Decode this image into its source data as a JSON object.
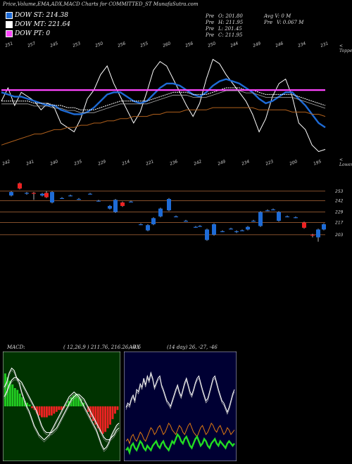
{
  "header": {
    "title": "Price,Volume,EMA,ADX,MACD Charts for COMMITTED_ST MunafaSutra.com"
  },
  "legend": [
    {
      "label": "DOW ST: 214.38",
      "color": "#1e6bd6"
    },
    {
      "label": "DOW MT: 221.64",
      "color": "#ffffff"
    },
    {
      "label": "DOW PT: 0",
      "color": "#ff44ff"
    }
  ],
  "ohlc": {
    "rows": [
      {
        "left_key": "Pre",
        "left_val": "O: 201.80",
        "right_key": "Avg V:",
        "right_val": "0  M"
      },
      {
        "left_key": "Pre",
        "left_val": "H: 211.95",
        "right_key": "Pre",
        "right_val": "V: 0.067 M"
      },
      {
        "left_key": "Pre",
        "left_val": "L: 201.45",
        "right_key": "",
        "right_val": ""
      },
      {
        "left_key": "Pre",
        "left_val": "C: 211.95",
        "right_key": "",
        "right_val": ""
      }
    ]
  },
  "side_labels": {
    "upper": "< Toppe",
    "lower": "< Lower"
  },
  "top_price_labels": [
    "251",
    "257",
    "245",
    "253",
    "250",
    "256",
    "255",
    "260",
    "256",
    "250",
    "244",
    "249",
    "246",
    "234",
    "231"
  ],
  "bottom_price_labels": [
    "242",
    "241",
    "240",
    "235",
    "229",
    "214",
    "221",
    "236",
    "242",
    "249",
    "234",
    "223",
    "200",
    "195"
  ],
  "chart_data": [
    {
      "type": "line",
      "name": "price-ema-panel",
      "x": [
        0,
        1,
        2,
        3,
        4,
        5,
        6,
        7,
        8,
        9,
        10,
        11,
        12,
        13,
        14,
        15,
        16,
        17,
        18,
        19,
        20,
        21,
        22,
        23,
        24,
        25,
        26,
        27,
        28,
        29,
        30,
        31,
        32,
        33,
        34,
        35,
        36,
        37,
        38,
        39,
        40,
        41,
        42,
        43,
        44,
        45,
        46,
        47,
        48,
        49
      ],
      "series": [
        {
          "values": [
            236,
            242,
            234,
            240,
            238,
            236,
            232,
            235,
            233,
            226,
            224,
            222,
            228,
            237,
            241,
            248,
            252,
            244,
            238,
            232,
            226,
            231,
            240,
            250,
            254,
            252,
            246,
            240,
            234,
            229,
            235,
            246,
            255,
            253,
            248,
            244,
            240,
            236,
            230,
            222,
            228,
            238,
            244,
            246,
            238,
            226,
            223,
            216,
            213,
            214
          ],
          "color": "#ffffff"
        },
        {
          "values": [
            240,
            239,
            238,
            238,
            237,
            236,
            235,
            234,
            234,
            232,
            231,
            230,
            230,
            231,
            233,
            236,
            239,
            240,
            240,
            238,
            236,
            235,
            236,
            239,
            242,
            244,
            244,
            243,
            241,
            239,
            238,
            240,
            243,
            245,
            246,
            245,
            244,
            242,
            240,
            237,
            235,
            236,
            238,
            240,
            240,
            237,
            234,
            230,
            226,
            224
          ],
          "color": "#1e6bd6"
        },
        {
          "values": [
            236,
            236,
            236,
            236,
            236,
            235,
            235,
            235,
            234,
            234,
            233,
            233,
            232,
            232,
            232,
            233,
            234,
            235,
            236,
            236,
            236,
            236,
            236,
            237,
            238,
            239,
            240,
            240,
            240,
            239,
            239,
            239,
            240,
            241,
            242,
            242,
            242,
            241,
            241,
            240,
            239,
            239,
            239,
            239,
            239,
            238,
            237,
            236,
            235,
            234
          ],
          "color": "#ffffff"
        },
        {
          "values": [
            216,
            217,
            218,
            219,
            220,
            221,
            221,
            222,
            223,
            223,
            224,
            224,
            225,
            225,
            226,
            226,
            227,
            227,
            228,
            228,
            229,
            229,
            229,
            230,
            230,
            231,
            231,
            231,
            232,
            232,
            232,
            232,
            233,
            233,
            233,
            233,
            233,
            233,
            233,
            232,
            232,
            232,
            232,
            232,
            231,
            231,
            231,
            230,
            230,
            229
          ],
          "color": "#b0601c"
        },
        {
          "values": [
            241,
            241,
            241,
            241,
            241,
            241,
            241,
            241,
            241,
            241,
            241,
            241,
            241,
            241,
            241,
            241,
            241,
            241,
            241,
            241,
            241,
            241,
            241,
            241,
            241,
            241,
            241,
            241,
            241,
            241,
            241,
            241,
            241,
            241,
            241,
            241,
            241,
            241,
            241,
            241,
            241,
            241,
            241,
            241,
            241,
            241,
            241,
            241,
            241,
            241
          ],
          "color": "#ff44ff"
        }
      ]
    },
    {
      "type": "bar",
      "name": "candles",
      "reference_levels": [
        "253",
        "242",
        "229",
        "217",
        "203"
      ],
      "candles": [
        {
          "x": 16,
          "o": 248,
          "c": 252,
          "h": 253,
          "l": 247,
          "up": true
        },
        {
          "x": 28,
          "o": 262,
          "c": 256,
          "h": 263,
          "l": 255,
          "up": false
        },
        {
          "x": 38,
          "o": 250,
          "c": 251,
          "h": 252,
          "l": 249,
          "up": true
        },
        {
          "x": 48,
          "o": 251,
          "c": 250,
          "h": 252,
          "l": 243,
          "up": false
        },
        {
          "x": 60,
          "o": 248,
          "c": 250,
          "h": 251,
          "l": 247,
          "up": true
        },
        {
          "x": 66,
          "o": 251,
          "c": 246,
          "h": 253,
          "l": 245,
          "up": false
        },
        {
          "x": 74,
          "o": 252,
          "c": 240,
          "h": 253,
          "l": 239,
          "up": true
        },
        {
          "x": 88,
          "o": 245,
          "c": 245,
          "h": 246,
          "l": 244,
          "up": true
        },
        {
          "x": 100,
          "o": 248,
          "c": 248,
          "h": 249,
          "l": 247,
          "up": true
        },
        {
          "x": 112,
          "o": 244,
          "c": 244,
          "h": 245,
          "l": 243,
          "up": true
        },
        {
          "x": 128,
          "o": 250,
          "c": 250,
          "h": 251,
          "l": 249,
          "up": true
        },
        {
          "x": 140,
          "o": 242,
          "c": 242,
          "h": 243,
          "l": 241,
          "up": true
        },
        {
          "x": 156,
          "o": 233,
          "c": 236,
          "h": 237,
          "l": 232,
          "up": true
        },
        {
          "x": 164,
          "o": 229,
          "c": 243,
          "h": 244,
          "l": 228,
          "up": true
        },
        {
          "x": 174,
          "o": 240,
          "c": 236,
          "h": 241,
          "l": 235,
          "up": false
        },
        {
          "x": 186,
          "o": 241,
          "c": 241,
          "h": 242,
          "l": 240,
          "up": true
        },
        {
          "x": 200,
          "o": 215,
          "c": 215,
          "h": 216,
          "l": 214,
          "up": true
        },
        {
          "x": 210,
          "o": 208,
          "c": 214,
          "h": 215,
          "l": 207,
          "up": true
        },
        {
          "x": 218,
          "o": 215,
          "c": 222,
          "h": 223,
          "l": 214,
          "up": true
        },
        {
          "x": 228,
          "o": 224,
          "c": 233,
          "h": 234,
          "l": 223,
          "up": true
        },
        {
          "x": 240,
          "o": 231,
          "c": 244,
          "h": 245,
          "l": 230,
          "up": true
        },
        {
          "x": 250,
          "o": 224,
          "c": 224,
          "h": 225,
          "l": 223,
          "up": true
        },
        {
          "x": 264,
          "o": 219,
          "c": 219,
          "h": 220,
          "l": 218,
          "up": true
        },
        {
          "x": 278,
          "o": 212,
          "c": 212,
          "h": 213,
          "l": 211,
          "up": true
        },
        {
          "x": 284,
          "o": 213,
          "c": 213,
          "h": 214,
          "l": 212,
          "up": true
        },
        {
          "x": 294,
          "o": 197,
          "c": 209,
          "h": 210,
          "l": 196,
          "up": true
        },
        {
          "x": 304,
          "o": 203,
          "c": 215,
          "h": 216,
          "l": 202,
          "up": true
        },
        {
          "x": 316,
          "o": 207,
          "c": 207,
          "h": 208,
          "l": 206,
          "up": true
        },
        {
          "x": 328,
          "o": 210,
          "c": 210,
          "h": 211,
          "l": 209,
          "up": true
        },
        {
          "x": 336,
          "o": 206,
          "c": 207,
          "h": 208,
          "l": 205,
          "up": true
        },
        {
          "x": 344,
          "o": 208,
          "c": 208,
          "h": 209,
          "l": 207,
          "up": true
        },
        {
          "x": 352,
          "o": 209,
          "c": 212,
          "h": 213,
          "l": 208,
          "up": true
        },
        {
          "x": 360,
          "o": 219,
          "c": 219,
          "h": 220,
          "l": 218,
          "up": true
        },
        {
          "x": 370,
          "o": 213,
          "c": 229,
          "h": 230,
          "l": 212,
          "up": true
        },
        {
          "x": 380,
          "o": 231,
          "c": 231,
          "h": 232,
          "l": 230,
          "up": true
        },
        {
          "x": 388,
          "o": 232,
          "c": 232,
          "h": 233,
          "l": 231,
          "up": true
        },
        {
          "x": 396,
          "o": 229,
          "c": 219,
          "h": 230,
          "l": 218,
          "up": true
        },
        {
          "x": 408,
          "o": 224,
          "c": 224,
          "h": 225,
          "l": 223,
          "up": true
        },
        {
          "x": 420,
          "o": 223,
          "c": 223,
          "h": 224,
          "l": 222,
          "up": true
        },
        {
          "x": 432,
          "o": 217,
          "c": 211,
          "h": 218,
          "l": 210,
          "up": false
        },
        {
          "x": 444,
          "o": 203,
          "c": 202,
          "h": 204,
          "l": 200,
          "up": false
        },
        {
          "x": 452,
          "o": 200,
          "c": 209,
          "h": 210,
          "l": 195,
          "up": true
        },
        {
          "x": 460,
          "o": 209,
          "c": 215,
          "h": 216,
          "l": 208,
          "up": true
        }
      ]
    },
    {
      "type": "bar",
      "name": "macd",
      "label": "MACD:",
      "params": "( 12,26,9 ) 211.76, 216.26, -4.5",
      "histogram": [
        18,
        16,
        14,
        12,
        10,
        9,
        7,
        5,
        3,
        2,
        1,
        -1,
        -2,
        -4,
        -5,
        -6,
        -6,
        -6,
        -5,
        -5,
        -4,
        -3,
        -2,
        -2,
        -1,
        1,
        3,
        5,
        6,
        7,
        6,
        4,
        2,
        0,
        -3,
        -6,
        -8,
        -10,
        -12,
        -14,
        -15,
        -14,
        -12,
        -10,
        -7,
        -4,
        -2
      ],
      "lines": [
        {
          "values": [
            8,
            10,
            14,
            16,
            15,
            12,
            10,
            6,
            3,
            0,
            -2,
            -5,
            -8,
            -10,
            -12,
            -13,
            -14,
            -13,
            -12,
            -10,
            -8,
            -6,
            -4,
            -2,
            0,
            2,
            4,
            5,
            6,
            5,
            4,
            2,
            0,
            -2,
            -4,
            -6,
            -8,
            -10,
            -13,
            -16,
            -18,
            -17,
            -15,
            -12,
            -10,
            -8,
            -7
          ]
        },
        {
          "values": [
            4,
            6,
            9,
            11,
            12,
            12,
            11,
            10,
            8,
            6,
            4,
            2,
            0,
            -2,
            -5,
            -8,
            -10,
            -11,
            -11,
            -11,
            -10,
            -9,
            -7,
            -5,
            -3,
            -1,
            1,
            3,
            4,
            5,
            5,
            4,
            3,
            1,
            -1,
            -3,
            -5,
            -7,
            -9,
            -11,
            -13,
            -14,
            -14,
            -13,
            -12,
            -10,
            -9
          ]
        }
      ]
    },
    {
      "type": "line",
      "name": "adx",
      "label": "ADX",
      "params": "(14 day) 26, -27, -46",
      "series": [
        {
          "values": [
            44,
            48,
            46,
            52,
            55,
            50,
            60,
            58,
            65,
            62,
            70,
            64,
            72,
            68,
            75,
            70,
            62,
            66,
            70,
            72,
            64,
            60,
            55,
            50,
            48,
            45,
            50,
            55,
            60,
            64,
            58,
            54,
            60,
            66,
            70,
            64,
            58,
            55,
            60,
            66,
            70,
            72,
            66,
            60,
            55,
            50,
            52,
            58,
            64,
            70,
            72,
            66,
            60,
            55,
            50,
            48,
            44,
            40,
            44,
            50,
            56,
            60
          ],
          "color": "#ffffff"
        },
        {
          "values": [
            14,
            16,
            12,
            18,
            20,
            16,
            14,
            18,
            22,
            20,
            16,
            14,
            18,
            22,
            26,
            24,
            20,
            22,
            26,
            28,
            24,
            20,
            22,
            26,
            30,
            28,
            24,
            22,
            20,
            24,
            28,
            26,
            22,
            20,
            24,
            28,
            30,
            26,
            22,
            20,
            18,
            22,
            26,
            28,
            24,
            20,
            22,
            26,
            30,
            28,
            24,
            22,
            26,
            28,
            24,
            20,
            22,
            26,
            24,
            20,
            22,
            24
          ],
          "color": "#e07a10"
        },
        {
          "values": [
            6,
            8,
            4,
            10,
            12,
            8,
            6,
            10,
            14,
            12,
            8,
            6,
            10,
            8,
            6,
            10,
            12,
            14,
            10,
            8,
            12,
            14,
            10,
            8,
            6,
            10,
            14,
            12,
            16,
            20,
            18,
            14,
            12,
            16,
            18,
            14,
            10,
            8,
            12,
            16,
            18,
            14,
            10,
            12,
            16,
            14,
            10,
            8,
            12,
            14,
            16,
            12,
            10,
            14,
            12,
            10,
            8,
            12,
            14,
            12,
            10,
            12
          ],
          "color": "#22dd22"
        }
      ]
    }
  ]
}
